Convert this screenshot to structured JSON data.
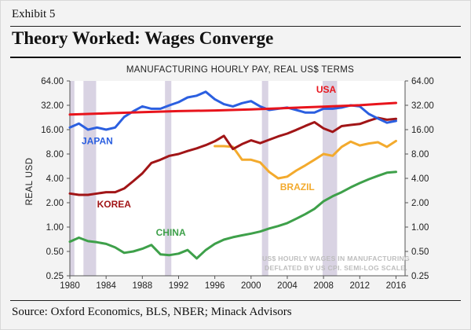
{
  "exhibit_label": "Exhibit 5",
  "title": "Theory Worked: Wages Converge",
  "source": "Source: Oxford Economics, BLS, NBER; Minack Advisors",
  "chart_data": {
    "type": "line",
    "subtitle": "MANUFACTURING HOURLY PAY, REAL US$ TERMS",
    "ylabel": "REAL USD",
    "xlabel": "",
    "y_scale": "log2",
    "ylim": [
      0.25,
      64
    ],
    "xlim": [
      1980,
      2017
    ],
    "x_ticks": [
      1980,
      1984,
      1988,
      1992,
      1996,
      2000,
      2004,
      2008,
      2012,
      2016
    ],
    "y_ticks": [
      0.25,
      0.5,
      1,
      2,
      4,
      8,
      16,
      32,
      64
    ],
    "y_tick_labels": [
      "0.25",
      "0.50",
      "1.00",
      "2.00",
      "4.00",
      "8.00",
      "16.00",
      "32.00",
      "64.00"
    ],
    "grid": false,
    "recession_shading": [
      [
        1980.0,
        1980.5
      ],
      [
        1981.5,
        1982.9
      ],
      [
        1990.5,
        1991.2
      ],
      [
        2001.2,
        2001.9
      ],
      [
        2007.9,
        2009.5
      ]
    ],
    "note": "US$ HOURLY WAGES IN MANUFACTURING DEFLATED BY US CPI. SEMI-LOG SCALE.",
    "series": [
      {
        "name": "USA",
        "color": "#e8141c",
        "points": [
          [
            1980,
            24.6
          ],
          [
            1984,
            25.4
          ],
          [
            1988,
            26.3
          ],
          [
            1992,
            27.1
          ],
          [
            1996,
            27.6
          ],
          [
            2000,
            28.5
          ],
          [
            2004,
            29.6
          ],
          [
            2008,
            30.8
          ],
          [
            2012,
            32.1
          ],
          [
            2014,
            33.2
          ],
          [
            2016,
            34.2
          ]
        ]
      },
      {
        "name": "JAPAN",
        "color": "#2b5fe0",
        "points": [
          [
            1980,
            17
          ],
          [
            1981,
            19
          ],
          [
            1982,
            16
          ],
          [
            1983,
            17
          ],
          [
            1984,
            16
          ],
          [
            1985,
            17
          ],
          [
            1986,
            23
          ],
          [
            1987,
            27
          ],
          [
            1988,
            31
          ],
          [
            1989,
            29
          ],
          [
            1990,
            29
          ],
          [
            1991,
            32
          ],
          [
            1992,
            35
          ],
          [
            1993,
            40
          ],
          [
            1994,
            42
          ],
          [
            1995,
            47
          ],
          [
            1996,
            38
          ],
          [
            1997,
            33
          ],
          [
            1998,
            31
          ],
          [
            1999,
            34
          ],
          [
            2000,
            36
          ],
          [
            2001,
            31
          ],
          [
            2002,
            28
          ],
          [
            2003,
            29
          ],
          [
            2004,
            30
          ],
          [
            2005,
            28
          ],
          [
            2006,
            26
          ],
          [
            2007,
            26
          ],
          [
            2008,
            29
          ],
          [
            2009,
            29
          ],
          [
            2010,
            30
          ],
          [
            2011,
            32
          ],
          [
            2012,
            31
          ],
          [
            2013,
            25
          ],
          [
            2014,
            22
          ],
          [
            2015,
            19.5
          ],
          [
            2016,
            20.5
          ]
        ]
      },
      {
        "name": "KOREA",
        "color": "#a11517",
        "points": [
          [
            1980,
            2.6
          ],
          [
            1981,
            2.5
          ],
          [
            1982,
            2.5
          ],
          [
            1983,
            2.6
          ],
          [
            1984,
            2.7
          ],
          [
            1985,
            2.7
          ],
          [
            1986,
            3.0
          ],
          [
            1987,
            3.7
          ],
          [
            1988,
            4.6
          ],
          [
            1989,
            6.2
          ],
          [
            1990,
            6.8
          ],
          [
            1991,
            7.6
          ],
          [
            1992,
            8.0
          ],
          [
            1993,
            8.7
          ],
          [
            1994,
            9.4
          ],
          [
            1995,
            10.3
          ],
          [
            1996,
            11.5
          ],
          [
            1997,
            13.4
          ],
          [
            1998,
            9.2
          ],
          [
            1999,
            10.6
          ],
          [
            2000,
            11.8
          ],
          [
            2001,
            10.9
          ],
          [
            2002,
            12.0
          ],
          [
            2003,
            13.2
          ],
          [
            2004,
            14.3
          ],
          [
            2005,
            15.9
          ],
          [
            2006,
            17.8
          ],
          [
            2007,
            19.8
          ],
          [
            2008,
            16.6
          ],
          [
            2009,
            15.0
          ],
          [
            2010,
            17.7
          ],
          [
            2011,
            18.3
          ],
          [
            2012,
            18.8
          ],
          [
            2013,
            20.6
          ],
          [
            2014,
            22.4
          ],
          [
            2015,
            21.2
          ],
          [
            2016,
            21.8
          ]
        ]
      },
      {
        "name": "BRAZIL",
        "color": "#f3aa2d",
        "points": [
          [
            1996,
            10
          ],
          [
            1997,
            10
          ],
          [
            1998,
            9.8
          ],
          [
            1999,
            6.8
          ],
          [
            2000,
            6.8
          ],
          [
            2001,
            6.3
          ],
          [
            2002,
            4.8
          ],
          [
            2003,
            4.0
          ],
          [
            2004,
            4.2
          ],
          [
            2005,
            5.0
          ],
          [
            2006,
            5.8
          ],
          [
            2007,
            6.8
          ],
          [
            2008,
            8.0
          ],
          [
            2009,
            7.6
          ],
          [
            2010,
            9.8
          ],
          [
            2011,
            11.4
          ],
          [
            2012,
            10.2
          ],
          [
            2013,
            10.8
          ],
          [
            2014,
            11.2
          ],
          [
            2015,
            9.8
          ],
          [
            2016,
            11.6
          ]
        ]
      },
      {
        "name": "CHINA",
        "color": "#3ea04a",
        "points": [
          [
            1980,
            0.66
          ],
          [
            1981,
            0.74
          ],
          [
            1982,
            0.67
          ],
          [
            1983,
            0.65
          ],
          [
            1984,
            0.62
          ],
          [
            1985,
            0.56
          ],
          [
            1986,
            0.48
          ],
          [
            1987,
            0.5
          ],
          [
            1988,
            0.54
          ],
          [
            1989,
            0.6
          ],
          [
            1990,
            0.46
          ],
          [
            1991,
            0.45
          ],
          [
            1992,
            0.47
          ],
          [
            1993,
            0.52
          ],
          [
            1994,
            0.41
          ],
          [
            1995,
            0.52
          ],
          [
            1996,
            0.62
          ],
          [
            1997,
            0.7
          ],
          [
            1998,
            0.75
          ],
          [
            1999,
            0.79
          ],
          [
            2000,
            0.83
          ],
          [
            2001,
            0.88
          ],
          [
            2002,
            0.96
          ],
          [
            2003,
            1.03
          ],
          [
            2004,
            1.12
          ],
          [
            2005,
            1.27
          ],
          [
            2006,
            1.45
          ],
          [
            2007,
            1.68
          ],
          [
            2008,
            2.08
          ],
          [
            2009,
            2.4
          ],
          [
            2010,
            2.7
          ],
          [
            2011,
            3.1
          ],
          [
            2012,
            3.5
          ],
          [
            2013,
            3.9
          ],
          [
            2014,
            4.3
          ],
          [
            2015,
            4.7
          ],
          [
            2016,
            4.8
          ]
        ]
      }
    ]
  }
}
